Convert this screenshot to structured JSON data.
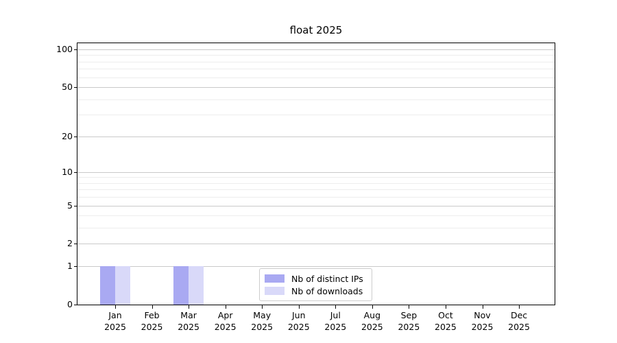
{
  "chart_data": {
    "type": "bar",
    "title": "float 2025",
    "categories": [
      "Jan",
      "Feb",
      "Mar",
      "Apr",
      "May",
      "Jun",
      "Jul",
      "Aug",
      "Sep",
      "Oct",
      "Nov",
      "Dec"
    ],
    "category_year": "2025",
    "series": [
      {
        "name": "Nb of distinct IPs",
        "color": "#a9a9f2",
        "values": [
          1,
          0,
          1,
          0,
          0,
          0,
          0,
          0,
          0,
          0,
          0,
          0
        ]
      },
      {
        "name": "Nb of downloads",
        "color": "#d9d9f9",
        "values": [
          1,
          0,
          1,
          0,
          0,
          0,
          0,
          0,
          0,
          0,
          0,
          0
        ]
      }
    ],
    "xlabel": "",
    "ylabel": "",
    "yscale": "log1p",
    "ylim": [
      0,
      112
    ],
    "yticks": [
      0,
      1,
      2,
      5,
      10,
      20,
      50,
      100
    ],
    "minor_gridlines": [
      3,
      4,
      6,
      7,
      8,
      9,
      30,
      40,
      60,
      70,
      80,
      90
    ],
    "grid": true,
    "legend": {
      "position": "lower center"
    },
    "colors": {
      "grid_major": "#c9c9c9",
      "grid_minor": "#ededed",
      "axis": "#000000",
      "legend_border": "#cccccc",
      "text": "#000000"
    }
  }
}
